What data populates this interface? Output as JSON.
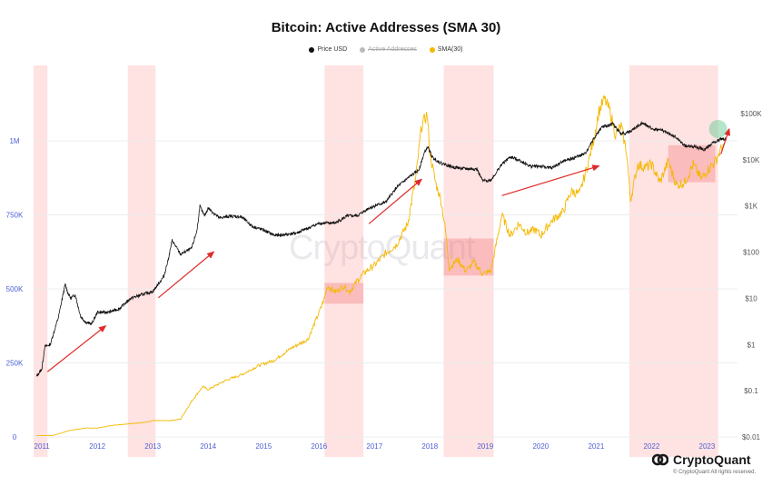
{
  "chart_data": {
    "type": "line",
    "title": "Bitcoin: Active Addresses (SMA 30)",
    "legend": [
      {
        "name": "Price USD",
        "color": "#111111",
        "visible": true
      },
      {
        "name": "Active Addresses",
        "color": "#aaaaaa",
        "visible": false
      },
      {
        "name": "SMA(30)",
        "color": "#f5b800",
        "visible": true
      }
    ],
    "x_range": [
      2010.85,
      2023.55
    ],
    "x_ticks": [
      "2011",
      "2012",
      "2013",
      "2014",
      "2015",
      "2016",
      "2017",
      "2018",
      "2019",
      "2020",
      "2021",
      "2022",
      "2023"
    ],
    "y_left": {
      "range": [
        0,
        1250000
      ],
      "ticks": [
        0,
        250000,
        500000,
        750000,
        1000000
      ],
      "tick_labels": [
        "0",
        "250K",
        "500K",
        "750K",
        "1M"
      ]
    },
    "y_right": {
      "scale": "log",
      "range": [
        0.01,
        1000000
      ],
      "ticks": [
        0.01,
        0.1,
        1,
        10,
        100,
        1000,
        10000,
        100000
      ],
      "tick_labels": [
        "$0.01",
        "$0.1",
        "$1",
        "$10",
        "$100",
        "$1K",
        "$10K",
        "$100K"
      ]
    },
    "grid": true,
    "series": [
      {
        "name": "Price USD",
        "axis": "right",
        "color": "#111111",
        "x": [
          2010.9,
          2011.0,
          2011.05,
          2011.15,
          2011.3,
          2011.35,
          2011.42,
          2011.46,
          2011.52,
          2011.6,
          2011.7,
          2011.8,
          2011.9,
          2012.0,
          2012.2,
          2012.4,
          2012.6,
          2012.8,
          2013.0,
          2013.2,
          2013.28,
          2013.35,
          2013.5,
          2013.7,
          2013.8,
          2013.85,
          2013.93,
          2014.0,
          2014.2,
          2014.4,
          2014.6,
          2014.8,
          2015.0,
          2015.2,
          2015.4,
          2015.6,
          2015.8,
          2016.0,
          2016.3,
          2016.5,
          2016.7,
          2016.9,
          2017.0,
          2017.2,
          2017.4,
          2017.6,
          2017.8,
          2017.9,
          2017.96,
          2018.05,
          2018.2,
          2018.4,
          2018.6,
          2018.85,
          2018.95,
          2019.1,
          2019.3,
          2019.45,
          2019.6,
          2019.8,
          2020.0,
          2020.2,
          2020.4,
          2020.6,
          2020.8,
          2020.95,
          2021.1,
          2021.3,
          2021.45,
          2021.6,
          2021.85,
          2022.0,
          2022.2,
          2022.45,
          2022.6,
          2022.8,
          2022.95,
          2023.1,
          2023.25,
          2023.35
        ],
        "values": [
          0.2,
          0.3,
          0.9,
          1.0,
          4,
          8,
          20,
          14,
          10,
          12,
          4,
          3,
          2.8,
          5,
          5,
          6,
          10,
          12,
          14,
          30,
          70,
          180,
          90,
          120,
          300,
          1000,
          600,
          900,
          550,
          600,
          580,
          360,
          300,
          230,
          240,
          260,
          330,
          420,
          430,
          600,
          620,
          900,
          1000,
          1200,
          2500,
          4000,
          6000,
          14000,
          19000,
          11000,
          8500,
          7000,
          6400,
          6300,
          3500,
          3600,
          8000,
          11500,
          10000,
          7300,
          7200,
          6600,
          9200,
          11000,
          13500,
          28000,
          50000,
          60000,
          36000,
          40000,
          64000,
          47000,
          43000,
          30000,
          20000,
          19000,
          16500,
          23000,
          28000,
          28000
        ]
      },
      {
        "name": "SMA(30)",
        "axis": "left",
        "color": "#f5b800",
        "x": [
          2010.9,
          2011.2,
          2011.5,
          2011.8,
          2012.0,
          2012.3,
          2012.6,
          2012.9,
          2013.0,
          2013.3,
          2013.5,
          2013.7,
          2013.9,
          2014.0,
          2014.3,
          2014.6,
          2014.9,
          2015.2,
          2015.5,
          2015.8,
          2016.0,
          2016.1,
          2016.15,
          2016.3,
          2016.45,
          2016.55,
          2016.7,
          2016.85,
          2017.0,
          2017.2,
          2017.4,
          2017.6,
          2017.75,
          2017.85,
          2017.95,
          2018.0,
          2018.1,
          2018.2,
          2018.28,
          2018.35,
          2018.5,
          2018.65,
          2018.8,
          2018.95,
          2019.1,
          2019.3,
          2019.45,
          2019.6,
          2019.75,
          2019.9,
          2020.0,
          2020.2,
          2020.4,
          2020.55,
          2020.7,
          2020.85,
          2020.95,
          2021.05,
          2021.15,
          2021.25,
          2021.35,
          2021.45,
          2021.55,
          2021.62,
          2021.75,
          2021.9,
          2022.0,
          2022.15,
          2022.3,
          2022.45,
          2022.6,
          2022.75,
          2022.9,
          2023.0,
          2023.15,
          2023.3
        ],
        "values": [
          5000,
          5000,
          22000,
          30000,
          30000,
          40000,
          45000,
          50000,
          55000,
          55000,
          60000,
          120000,
          170000,
          160000,
          190000,
          210000,
          240000,
          260000,
          300000,
          330000,
          420000,
          470000,
          510000,
          490000,
          510000,
          490000,
          530000,
          560000,
          580000,
          620000,
          650000,
          720000,
          880000,
          1050000,
          1090000,
          960000,
          860000,
          800000,
          700000,
          570000,
          600000,
          560000,
          590000,
          550000,
          560000,
          750000,
          680000,
          720000,
          690000,
          700000,
          680000,
          730000,
          760000,
          830000,
          820000,
          920000,
          1000000,
          1100000,
          1140000,
          1100000,
          1020000,
          1050000,
          960000,
          800000,
          920000,
          910000,
          920000,
          860000,
          930000,
          850000,
          860000,
          920000,
          870000,
          900000,
          930000,
          990000
        ]
      }
    ],
    "shaded_x_ranges": [
      [
        2010.85,
        2011.1
      ],
      [
        2012.55,
        2013.05
      ],
      [
        2016.1,
        2016.8
      ],
      [
        2018.25,
        2019.15
      ],
      [
        2021.6,
        2023.2
      ]
    ],
    "shaded_boxes": [
      {
        "x": [
          2016.1,
          2016.8
        ],
        "y": [
          450000,
          520000
        ]
      },
      {
        "x": [
          2018.25,
          2019.15
        ],
        "y": [
          545000,
          670000
        ]
      },
      {
        "x": [
          2022.3,
          2023.15
        ],
        "y": [
          860000,
          985000
        ]
      }
    ],
    "trend_arrows": [
      {
        "from": [
          2011.1,
          220000
        ],
        "to": [
          2012.15,
          375000
        ]
      },
      {
        "from": [
          2013.1,
          470000
        ],
        "to": [
          2014.1,
          625000
        ]
      },
      {
        "from": [
          2016.9,
          720000
        ],
        "to": [
          2017.85,
          870000
        ]
      },
      {
        "from": [
          2019.3,
          815000
        ],
        "to": [
          2021.05,
          915000
        ]
      },
      {
        "from": [
          2023.25,
          955000
        ],
        "to": [
          2023.4,
          1040000
        ]
      }
    ],
    "highlight_circle": {
      "x": 2023.2,
      "y": 1040000
    }
  },
  "watermark": "CryptoQuant",
  "brand": {
    "name": "CryptoQuant",
    "copyright": "© CryptoQuant All rights reserved."
  }
}
